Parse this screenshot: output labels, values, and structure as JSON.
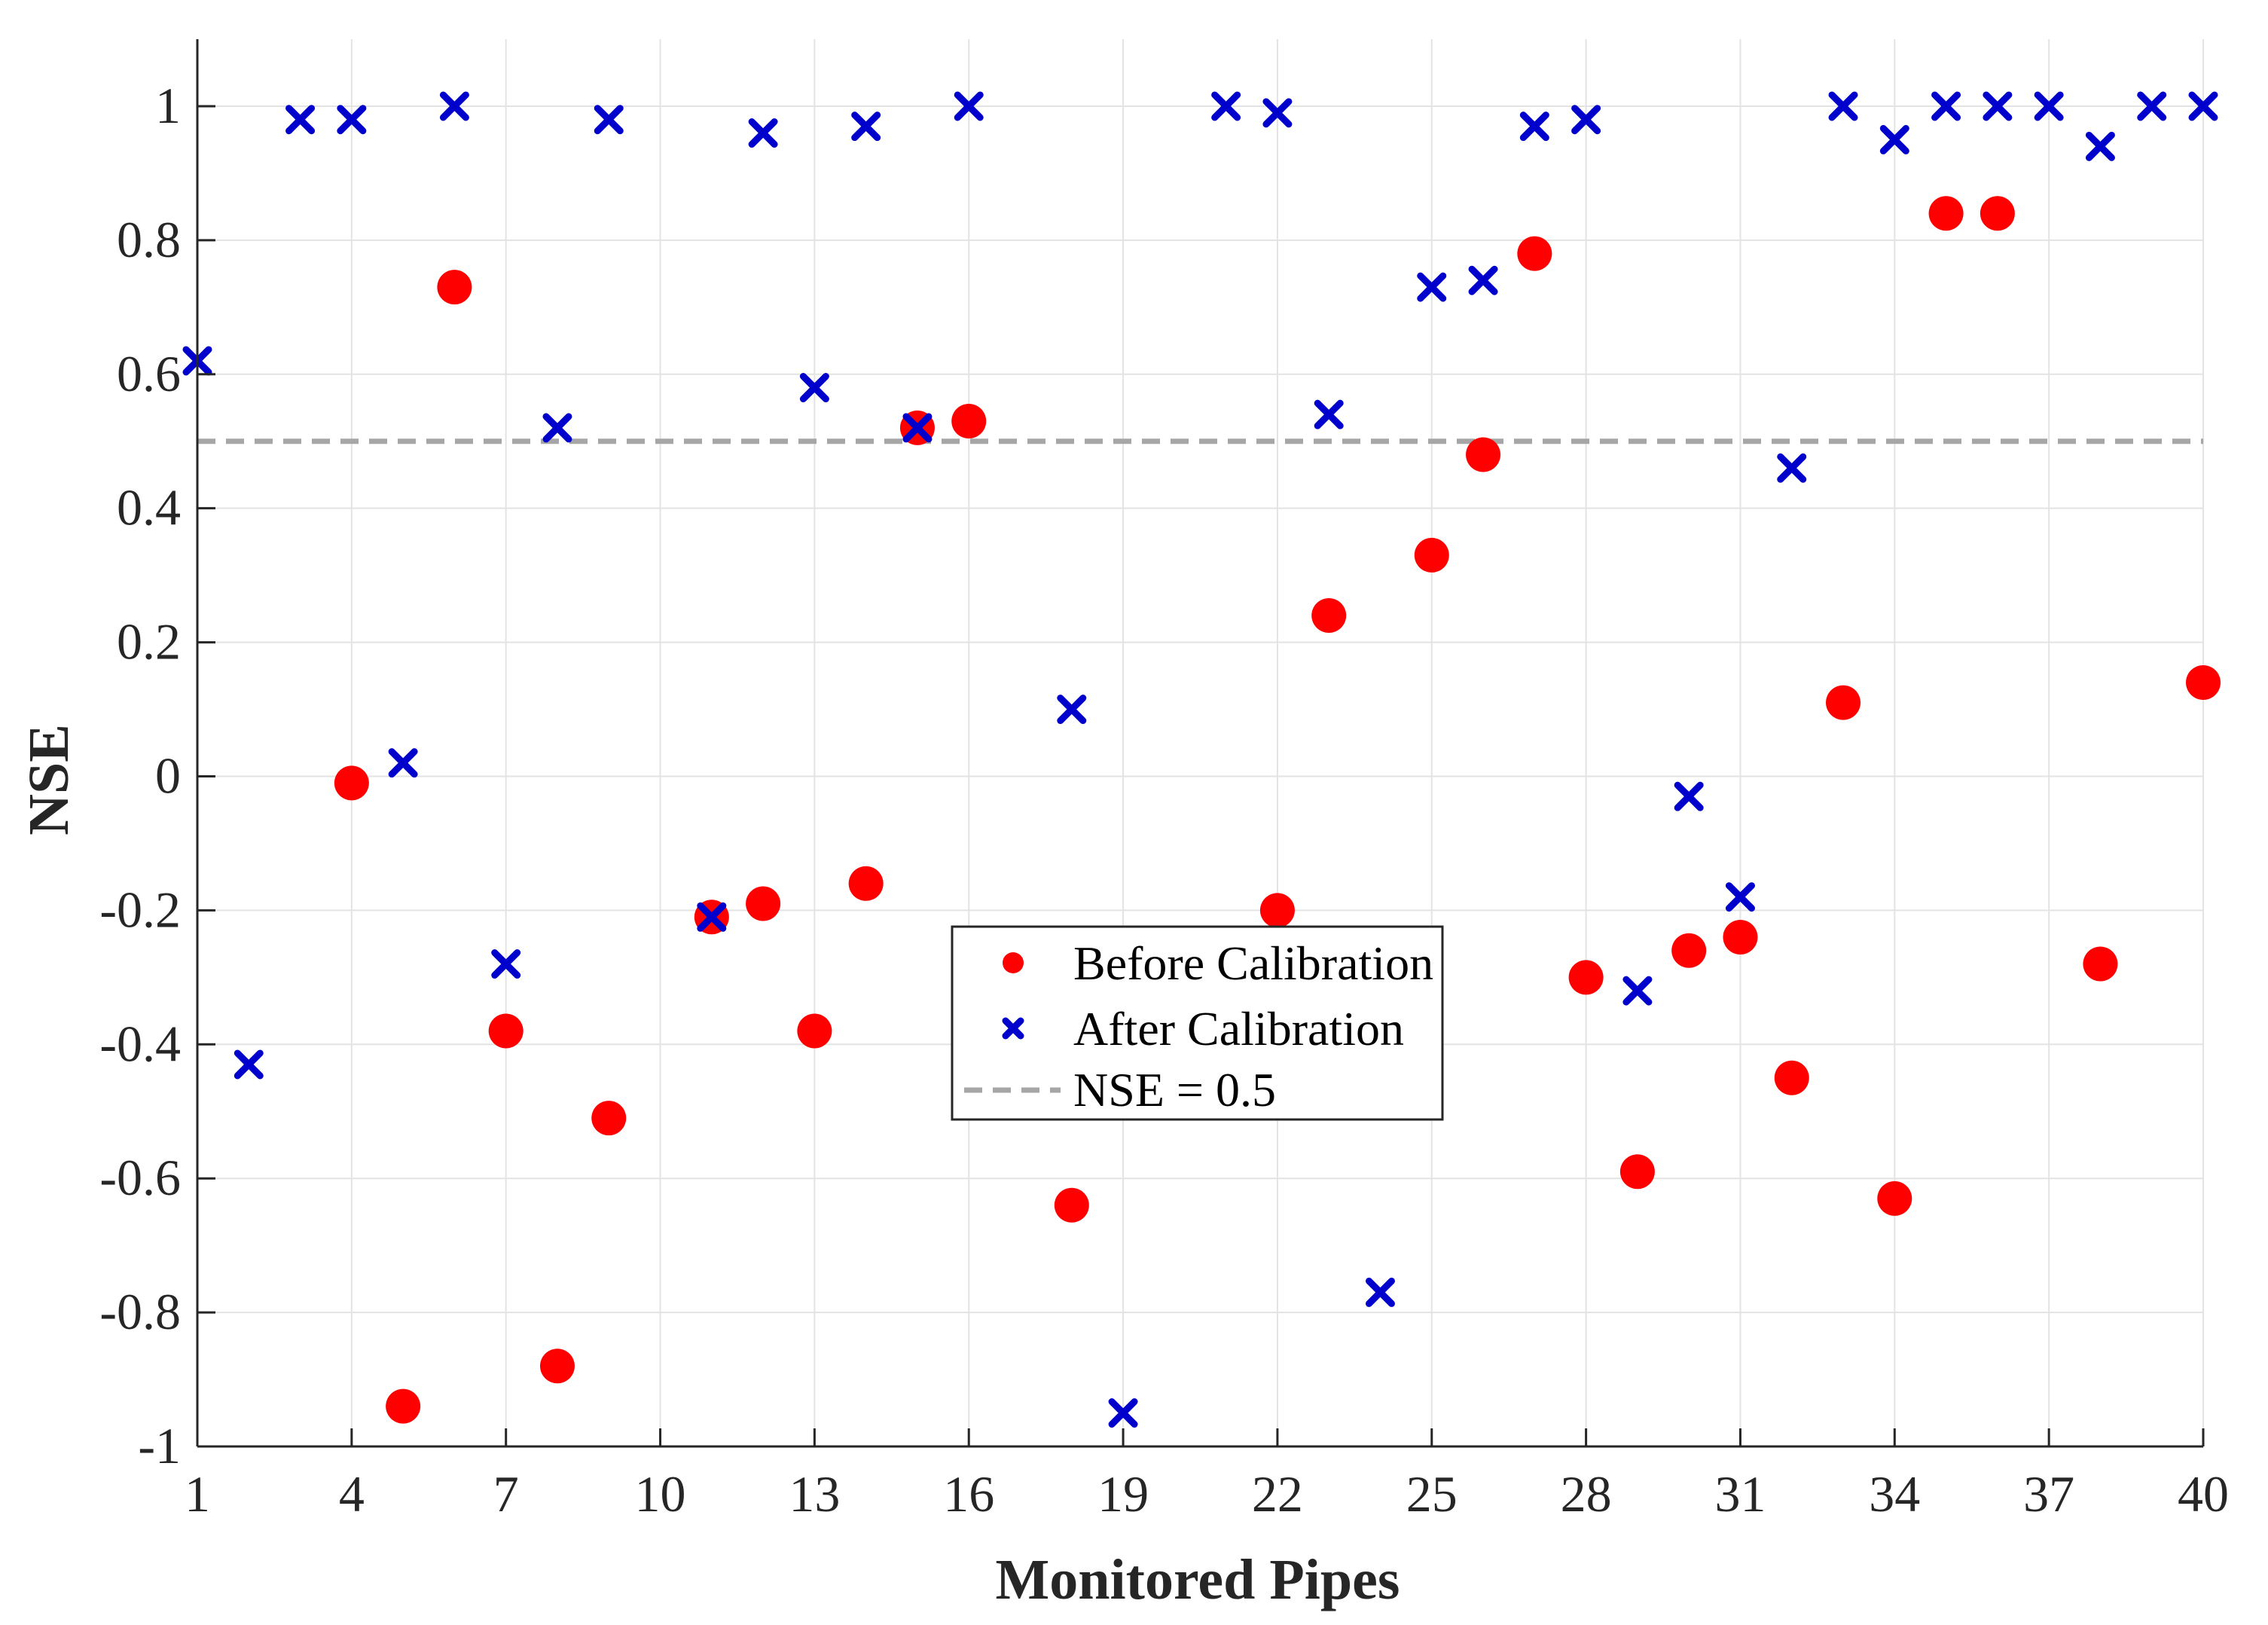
{
  "chart_data": {
    "type": "scatter",
    "title": "",
    "xlabel": "Monitored Pipes",
    "ylabel": "NSE",
    "xlim": [
      1,
      40
    ],
    "ylim": [
      -1,
      1.1
    ],
    "xticks": [
      1,
      4,
      7,
      10,
      13,
      16,
      19,
      22,
      25,
      28,
      31,
      34,
      37,
      40
    ],
    "yticks": [
      -1,
      -0.8,
      -0.6,
      -0.4,
      -0.2,
      0,
      0.2,
      0.4,
      0.6,
      0.8,
      1
    ],
    "ytick_labels": [
      "-1",
      "-0.8",
      "-0.6",
      "-0.4",
      "-0.2",
      "0",
      "0.2",
      "0.4",
      "0.6",
      "0.8",
      "1"
    ],
    "grid": true,
    "legend_position": "center",
    "reference_line": {
      "label": "NSE = 0.5",
      "y": 0.5,
      "color": "#a6a6a6",
      "style": "dashed"
    },
    "series": [
      {
        "name": "Before Calibration",
        "marker": "circle",
        "color": "#ff0000",
        "points": [
          [
            4,
            -0.01
          ],
          [
            5,
            -0.94
          ],
          [
            6,
            0.73
          ],
          [
            7,
            -0.38
          ],
          [
            8,
            -0.88
          ],
          [
            9,
            -0.51
          ],
          [
            11,
            -0.21
          ],
          [
            12,
            -0.19
          ],
          [
            13,
            -0.38
          ],
          [
            14,
            -0.16
          ],
          [
            15,
            0.52
          ],
          [
            16,
            0.53
          ],
          [
            18,
            -0.64
          ],
          [
            22,
            -0.2
          ],
          [
            23,
            0.24
          ],
          [
            25,
            0.33
          ],
          [
            26,
            0.48
          ],
          [
            27,
            0.78
          ],
          [
            28,
            -0.3
          ],
          [
            29,
            -0.59
          ],
          [
            30,
            -0.26
          ],
          [
            31,
            -0.24
          ],
          [
            32,
            -0.45
          ],
          [
            33,
            0.11
          ],
          [
            34,
            -0.63
          ],
          [
            35,
            0.84
          ],
          [
            36,
            0.84
          ],
          [
            38,
            -0.28
          ],
          [
            40,
            0.14
          ]
        ]
      },
      {
        "name": "After Calibration",
        "marker": "x",
        "color": "#0000cc",
        "points": [
          [
            1,
            0.62
          ],
          [
            2,
            -0.43
          ],
          [
            3,
            0.98
          ],
          [
            4,
            0.98
          ],
          [
            5,
            0.02
          ],
          [
            6,
            1.0
          ],
          [
            7,
            -0.28
          ],
          [
            8,
            0.52
          ],
          [
            9,
            0.98
          ],
          [
            11,
            -0.21
          ],
          [
            12,
            0.96
          ],
          [
            13,
            0.58
          ],
          [
            14,
            0.97
          ],
          [
            15,
            0.52
          ],
          [
            16,
            1.0
          ],
          [
            18,
            0.1
          ],
          [
            19,
            -0.95
          ],
          [
            21,
            1.0
          ],
          [
            22,
            0.99
          ],
          [
            23,
            0.54
          ],
          [
            24,
            -0.77
          ],
          [
            25,
            0.73
          ],
          [
            26,
            0.74
          ],
          [
            27,
            0.97
          ],
          [
            28,
            0.98
          ],
          [
            29,
            -0.32
          ],
          [
            30,
            -0.03
          ],
          [
            31,
            -0.18
          ],
          [
            32,
            0.46
          ],
          [
            33,
            1.0
          ],
          [
            34,
            0.95
          ],
          [
            35,
            1.0
          ],
          [
            36,
            1.0
          ],
          [
            37,
            1.0
          ],
          [
            38,
            0.94
          ],
          [
            39,
            1.0
          ],
          [
            40,
            1.0
          ]
        ]
      }
    ]
  }
}
